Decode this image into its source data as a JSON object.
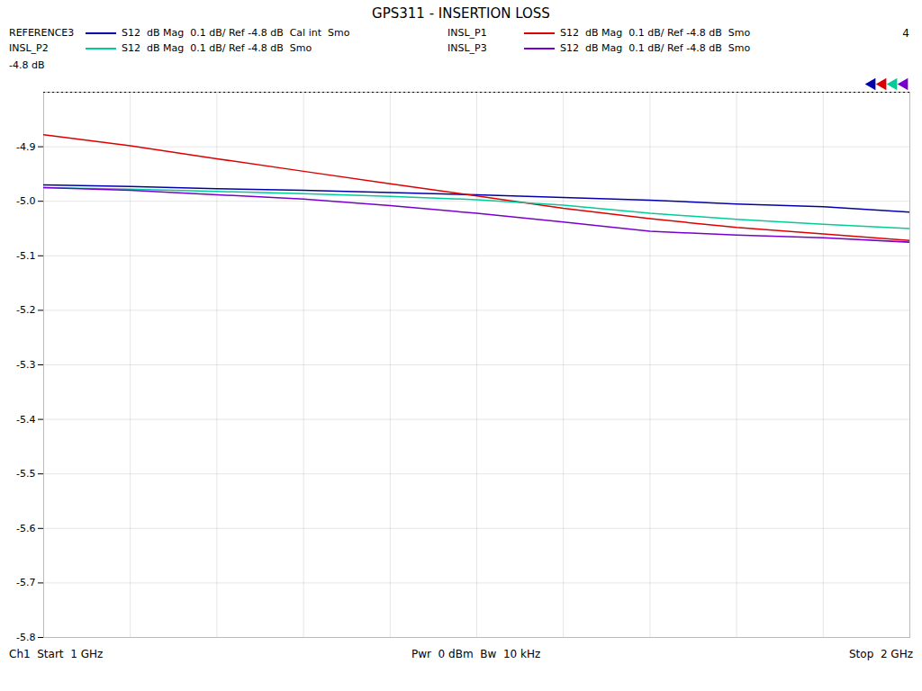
{
  "chart_data": {
    "type": "line",
    "title": "GPS311 - INSERTION LOSS",
    "x": [
      1.0,
      1.1,
      1.2,
      1.3,
      1.4,
      1.5,
      1.6,
      1.7,
      1.8,
      1.9,
      2.0
    ],
    "series": [
      {
        "name": "REFERENCE3",
        "label": "S12  dB Mag  0.1 dB/ Ref -4.8 dB  Cal int  Smo",
        "color": "#0000aa",
        "values": [
          -4.97,
          -4.973,
          -4.977,
          -4.98,
          -4.984,
          -4.988,
          -4.993,
          -4.998,
          -5.005,
          -5.01,
          -5.02
        ]
      },
      {
        "name": "INSL_P1",
        "label": "S12  dB Mag  0.1 dB/ Ref -4.8 dB  Smo",
        "color": "#dd0000",
        "values": [
          -4.878,
          -4.898,
          -4.922,
          -4.945,
          -4.968,
          -4.99,
          -5.013,
          -5.032,
          -5.048,
          -5.06,
          -5.072
        ]
      },
      {
        "name": "INSL_P2",
        "label": "S12  dB Mag  0.1 dB/ Ref -4.8 dB  Smo",
        "color": "#00cc99",
        "values": [
          -4.975,
          -4.978,
          -4.982,
          -4.986,
          -4.991,
          -4.997,
          -5.007,
          -5.022,
          -5.033,
          -5.042,
          -5.05
        ]
      },
      {
        "name": "INSL_P3",
        "label": "S12  dB Mag  0.1 dB/ Ref -4.8 dB  Smo",
        "color": "#7700cc",
        "values": [
          -4.975,
          -4.98,
          -4.988,
          -4.996,
          -5.008,
          -5.022,
          -5.038,
          -5.055,
          -5.062,
          -5.067,
          -5.075
        ]
      }
    ],
    "xlim": [
      1.0,
      2.0
    ],
    "xticks": [
      1.0,
      1.1,
      1.2,
      1.3,
      1.4,
      1.5,
      1.6,
      1.7,
      1.8,
      1.9,
      2.0
    ],
    "ylim": [
      -5.8,
      -4.8
    ],
    "yticks": [
      -4.9,
      {
        "value": -5.0,
        "label": "-5.0"
      },
      -5.1,
      -5.2,
      -5.3,
      -5.4,
      -5.5,
      -5.6,
      -5.7,
      -5.8
    ],
    "grid": true,
    "tick_labels": "y",
    "annotations": [
      "4",
      "-4.8 dB"
    ],
    "footer": [
      "Ch1  Start  1 GHz",
      "Pwr  0 dBm  Bw  10 kHz",
      "Stop  2 GHz"
    ]
  }
}
